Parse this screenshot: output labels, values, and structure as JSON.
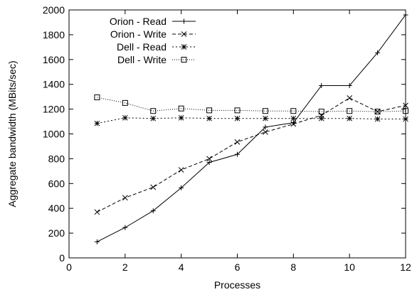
{
  "chart_data": {
    "type": "line",
    "xlabel": "Processes",
    "ylabel": "Aggregate bandwidth (MBits/sec)",
    "xlim": [
      0,
      12
    ],
    "ylim": [
      0,
      2000
    ],
    "xticks": [
      0,
      2,
      4,
      6,
      8,
      10,
      12
    ],
    "yticks": [
      0,
      200,
      400,
      600,
      800,
      1000,
      1200,
      1400,
      1600,
      1800,
      2000
    ],
    "grid": false,
    "legend_position": "top-left",
    "x": [
      1,
      2,
      3,
      4,
      5,
      6,
      7,
      8,
      9,
      10,
      11,
      12
    ],
    "series": [
      {
        "name": "Orion - Read",
        "line": "solid",
        "marker": "plus",
        "values": [
          130,
          245,
          380,
          565,
          770,
          835,
          1055,
          1090,
          1390,
          1390,
          1655,
          1960
        ]
      },
      {
        "name": "Orion - Write",
        "line": "dashed",
        "marker": "x",
        "values": [
          370,
          485,
          570,
          710,
          800,
          935,
          1015,
          1080,
          1150,
          1290,
          1180,
          1230
        ]
      },
      {
        "name": "Dell - Read",
        "line": "dotted",
        "marker": "star",
        "values": [
          1085,
          1130,
          1125,
          1130,
          1125,
          1125,
          1125,
          1125,
          1125,
          1125,
          1120,
          1120
        ]
      },
      {
        "name": "Dell - Write",
        "line": "fine-dotted",
        "marker": "square",
        "values": [
          1295,
          1250,
          1185,
          1205,
          1190,
          1190,
          1185,
          1185,
          1180,
          1185,
          1180,
          1185
        ]
      }
    ]
  }
}
